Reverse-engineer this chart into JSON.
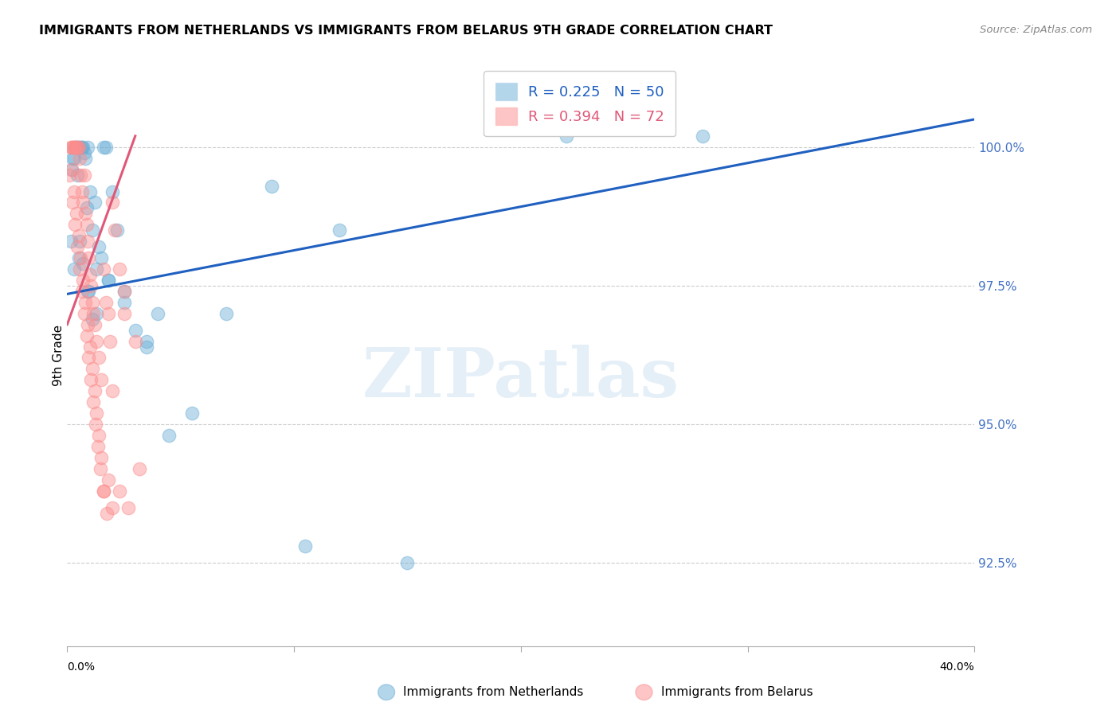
{
  "title": "IMMIGRANTS FROM NETHERLANDS VS IMMIGRANTS FROM BELARUS 9TH GRADE CORRELATION CHART",
  "source": "Source: ZipAtlas.com",
  "ylabel": "9th Grade",
  "y_ticks": [
    92.5,
    95.0,
    97.5,
    100.0
  ],
  "y_tick_labels": [
    "92.5%",
    "95.0%",
    "97.5%",
    "100.0%"
  ],
  "x_min": 0.0,
  "x_max": 40.0,
  "y_min": 91.0,
  "y_max": 101.5,
  "netherlands_color": "#6baed6",
  "belarus_color": "#fc8d8d",
  "nl_line_color": "#2060c0",
  "bl_line_color": "#e05878",
  "netherlands_R": 0.225,
  "netherlands_N": 50,
  "belarus_R": 0.394,
  "belarus_N": 72,
  "legend_label_netherlands": "Immigrants from Netherlands",
  "legend_label_belarus": "Immigrants from Belarus",
  "watermark": "ZIPatlas",
  "nl_line_x0": 0.0,
  "nl_line_y0": 97.35,
  "nl_line_x1": 40.0,
  "nl_line_y1": 100.5,
  "bl_line_x0": 0.0,
  "bl_line_y0": 96.8,
  "bl_line_x1": 3.0,
  "bl_line_y1": 100.2,
  "nl_x": [
    0.15,
    0.2,
    0.25,
    0.3,
    0.35,
    0.4,
    0.45,
    0.5,
    0.55,
    0.6,
    0.65,
    0.7,
    0.75,
    0.8,
    0.85,
    0.9,
    0.95,
    1.0,
    1.1,
    1.2,
    1.3,
    1.4,
    1.5,
    1.6,
    1.7,
    1.8,
    2.0,
    2.2,
    2.5,
    3.0,
    3.5,
    4.0,
    5.5,
    7.0,
    9.0,
    10.5,
    12.0,
    15.0,
    22.0,
    28.0,
    0.3,
    0.5,
    0.7,
    0.9,
    1.1,
    1.3,
    1.8,
    2.5,
    3.5,
    4.5
  ],
  "nl_y": [
    98.3,
    99.6,
    99.8,
    99.8,
    100.0,
    100.0,
    99.5,
    100.0,
    98.3,
    100.0,
    100.0,
    100.0,
    99.9,
    99.8,
    98.9,
    100.0,
    97.4,
    99.2,
    98.5,
    99.0,
    97.8,
    98.2,
    98.0,
    100.0,
    100.0,
    97.6,
    99.2,
    98.5,
    97.4,
    96.7,
    96.5,
    97.0,
    95.2,
    97.0,
    99.3,
    92.8,
    98.5,
    92.5,
    100.2,
    100.2,
    97.8,
    98.0,
    97.9,
    97.4,
    96.9,
    97.0,
    97.6,
    97.2,
    96.4,
    94.8
  ],
  "bl_x": [
    0.1,
    0.15,
    0.2,
    0.25,
    0.3,
    0.35,
    0.4,
    0.45,
    0.5,
    0.55,
    0.6,
    0.65,
    0.7,
    0.75,
    0.8,
    0.85,
    0.9,
    0.95,
    1.0,
    1.05,
    1.1,
    1.15,
    1.2,
    1.3,
    1.4,
    1.5,
    1.6,
    1.7,
    1.8,
    1.9,
    2.0,
    2.1,
    2.3,
    2.5,
    3.0,
    0.2,
    0.3,
    0.4,
    0.5,
    0.6,
    0.7,
    0.8,
    0.9,
    1.0,
    1.1,
    1.2,
    1.3,
    1.4,
    1.5,
    1.6,
    1.8,
    2.0,
    2.3,
    2.7,
    3.2,
    0.25,
    0.35,
    0.45,
    0.55,
    0.65,
    0.75,
    0.85,
    0.95,
    1.05,
    1.15,
    1.25,
    1.35,
    1.45,
    1.6,
    1.75,
    2.0,
    2.5
  ],
  "bl_y": [
    99.5,
    100.0,
    100.0,
    100.0,
    100.0,
    100.0,
    100.0,
    100.0,
    100.0,
    99.8,
    99.5,
    99.2,
    99.0,
    99.5,
    98.8,
    98.6,
    98.3,
    98.0,
    97.7,
    97.5,
    97.2,
    97.0,
    96.8,
    96.5,
    96.2,
    95.8,
    97.8,
    97.2,
    97.0,
    96.5,
    99.0,
    98.5,
    97.8,
    97.4,
    96.5,
    99.6,
    99.2,
    98.8,
    98.4,
    98.0,
    97.6,
    97.2,
    96.8,
    96.4,
    96.0,
    95.6,
    95.2,
    94.8,
    94.4,
    93.8,
    94.0,
    93.5,
    93.8,
    93.5,
    94.2,
    99.0,
    98.6,
    98.2,
    97.8,
    97.4,
    97.0,
    96.6,
    96.2,
    95.8,
    95.4,
    95.0,
    94.6,
    94.2,
    93.8,
    93.4,
    95.6,
    97.0
  ]
}
